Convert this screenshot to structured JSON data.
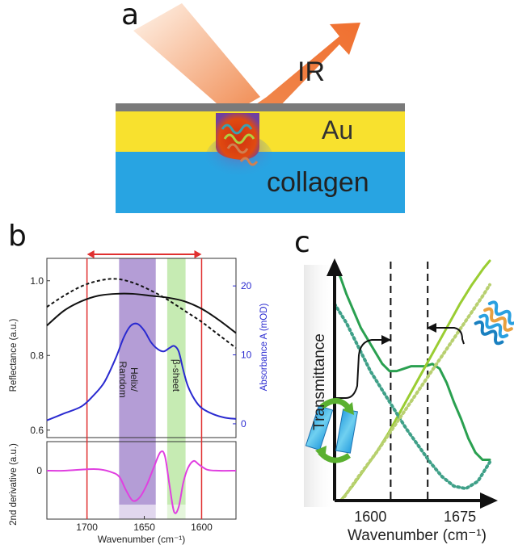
{
  "panel_a": {
    "letter": "a",
    "ir_label": "IR",
    "au_label": "Au",
    "collagen_label": "collagen"
  },
  "panel_b": {
    "letter": "b",
    "top_ylabel_left": "Reflectance (a.u.)",
    "top_ylabel_right": "Absorbance A (mOD)",
    "bottom_ylabel": "2nd derivative (a.u.)",
    "xlabel": "Wavenumber (cm⁻¹)",
    "band_helix": "Helix/ Random",
    "band_helix_line1": "Helix/",
    "band_helix_line2": "Random",
    "band_beta": "β-sheet",
    "colors": {
      "reflectance": "#111111",
      "absorbance": "#2a2ad0",
      "derivative": "#e040e0",
      "red": "#e03030",
      "helix_band": "#9b7cc8",
      "beta_band": "#a8e08a"
    }
  },
  "panel_c": {
    "letter": "c",
    "ylabel": "Transmittance",
    "xlabel": "Wavenumber (cm⁻¹)",
    "colors": {
      "green": "#2aa050",
      "lime": "#9acd32",
      "teal_dotted": "#3fa088",
      "lime_dotted": "#b8d070"
    }
  },
  "chart_data": [
    {
      "type": "line",
      "title": "",
      "xlabel": "Wavenumber (cm⁻¹)",
      "ylabel": "Reflectance (a.u.)",
      "y2label": "Absorbance A (mOD)",
      "xlim": [
        1735,
        1570
      ],
      "ylim": [
        0.58,
        1.06
      ],
      "y2lim": [
        -2,
        24
      ],
      "x_ticks": [
        1700,
        1650,
        1600
      ],
      "y_ticks": [
        0.6,
        0.8,
        1.0
      ],
      "y2_ticks": [
        0,
        10,
        20
      ],
      "bands": [
        {
          "label": "Helix/ Random",
          "from": 1672,
          "to": 1640
        },
        {
          "label": "β-sheet",
          "from": 1630,
          "to": 1614
        }
      ],
      "vertical_lines": [
        1700,
        1600
      ],
      "arrow_range": [
        1700,
        1600
      ],
      "series": [
        {
          "axis": "left",
          "style": "solid",
          "x": [
            1735,
            1720,
            1705,
            1690,
            1675,
            1660,
            1645,
            1630,
            1615,
            1600,
            1585,
            1570
          ],
          "values": [
            0.88,
            0.92,
            0.945,
            0.96,
            0.965,
            0.965,
            0.96,
            0.955,
            0.945,
            0.925,
            0.895,
            0.86
          ]
        },
        {
          "axis": "left",
          "style": "dashed",
          "x": [
            1735,
            1720,
            1705,
            1690,
            1675,
            1660,
            1645,
            1630,
            1615,
            1600,
            1585,
            1570
          ],
          "values": [
            0.93,
            0.96,
            0.985,
            1.0,
            1.005,
            0.995,
            0.975,
            0.95,
            0.92,
            0.89,
            0.855,
            0.82
          ]
        },
        {
          "axis": "right",
          "style": "solid",
          "x": [
            1735,
            1720,
            1705,
            1695,
            1685,
            1675,
            1668,
            1662,
            1656,
            1650,
            1644,
            1638,
            1633,
            1628,
            1624,
            1620,
            1616,
            1612,
            1606,
            1600,
            1590,
            1580,
            1570
          ],
          "values": [
            0.5,
            1.5,
            2.5,
            4.0,
            6.0,
            9.5,
            12.5,
            14.2,
            14.5,
            13.5,
            11.8,
            10.8,
            10.5,
            11.0,
            11.3,
            10.5,
            7.8,
            5.5,
            3.5,
            2.3,
            1.4,
            0.9,
            0.7
          ]
        }
      ]
    },
    {
      "type": "line",
      "title": "",
      "xlabel": "Wavenumber (cm⁻¹)",
      "ylabel": "2nd derivative (a.u.)",
      "xlim": [
        1735,
        1570
      ],
      "ylim": [
        -1.0,
        0.6
      ],
      "x_ticks": [
        1700,
        1650,
        1600
      ],
      "y_ticks": [
        0
      ],
      "series": [
        {
          "style": "solid",
          "x": [
            1735,
            1720,
            1700,
            1690,
            1680,
            1672,
            1666,
            1660,
            1654,
            1648,
            1642,
            1636,
            1632,
            1628,
            1624,
            1620,
            1616,
            1612,
            1607,
            1602,
            1595,
            1585,
            1570
          ],
          "values": [
            0.0,
            0.0,
            0.03,
            0.03,
            -0.02,
            -0.12,
            -0.4,
            -0.62,
            -0.55,
            -0.3,
            0.05,
            0.38,
            0.3,
            -0.3,
            -0.85,
            -0.75,
            -0.25,
            0.05,
            0.2,
            0.12,
            0.02,
            0.0,
            0.0
          ]
        }
      ]
    },
    {
      "type": "line",
      "title": "",
      "xlabel": "Wavenumber (cm⁻¹)",
      "ylabel": "Transmittance",
      "xlim": [
        1570,
        1700
      ],
      "ylim": [
        0,
        1
      ],
      "x_ticks": [
        1600,
        1675
      ],
      "vertical_lines": [
        1617,
        1648
      ],
      "series": [
        {
          "style": "solid",
          "color": "green",
          "x": [
            1570,
            1575,
            1580,
            1586,
            1592,
            1598,
            1604,
            1610,
            1616,
            1622,
            1628,
            1634,
            1640,
            1646,
            1652,
            1658,
            1664,
            1670,
            1676,
            1682,
            1688,
            1694,
            1700
          ],
          "values": [
            0.98,
            0.93,
            0.86,
            0.79,
            0.72,
            0.67,
            0.62,
            0.57,
            0.54,
            0.54,
            0.55,
            0.56,
            0.56,
            0.56,
            0.57,
            0.55,
            0.49,
            0.41,
            0.34,
            0.26,
            0.2,
            0.17,
            0.17
          ]
        },
        {
          "style": "solid",
          "color": "lime",
          "x": [
            1575,
            1585,
            1595,
            1605,
            1615,
            1625,
            1635,
            1645,
            1655,
            1665,
            1675,
            1685,
            1695,
            1700
          ],
          "values": [
            0.0,
            0.06,
            0.13,
            0.2,
            0.28,
            0.37,
            0.46,
            0.55,
            0.64,
            0.73,
            0.82,
            0.9,
            0.97,
            1.0
          ]
        },
        {
          "style": "dotted",
          "color": "teal",
          "x": [
            1570,
            1580,
            1590,
            1600,
            1610,
            1620,
            1630,
            1640,
            1650,
            1660,
            1670,
            1680,
            1690,
            1700
          ],
          "values": [
            0.82,
            0.74,
            0.64,
            0.54,
            0.46,
            0.38,
            0.3,
            0.23,
            0.16,
            0.1,
            0.06,
            0.05,
            0.08,
            0.16
          ]
        },
        {
          "style": "dotted",
          "color": "lime",
          "x": [
            1576,
            1590,
            1605,
            1620,
            1635,
            1650,
            1665,
            1680,
            1695,
            1700
          ],
          "values": [
            0.0,
            0.1,
            0.2,
            0.31,
            0.42,
            0.53,
            0.64,
            0.75,
            0.86,
            0.9
          ]
        }
      ]
    }
  ]
}
